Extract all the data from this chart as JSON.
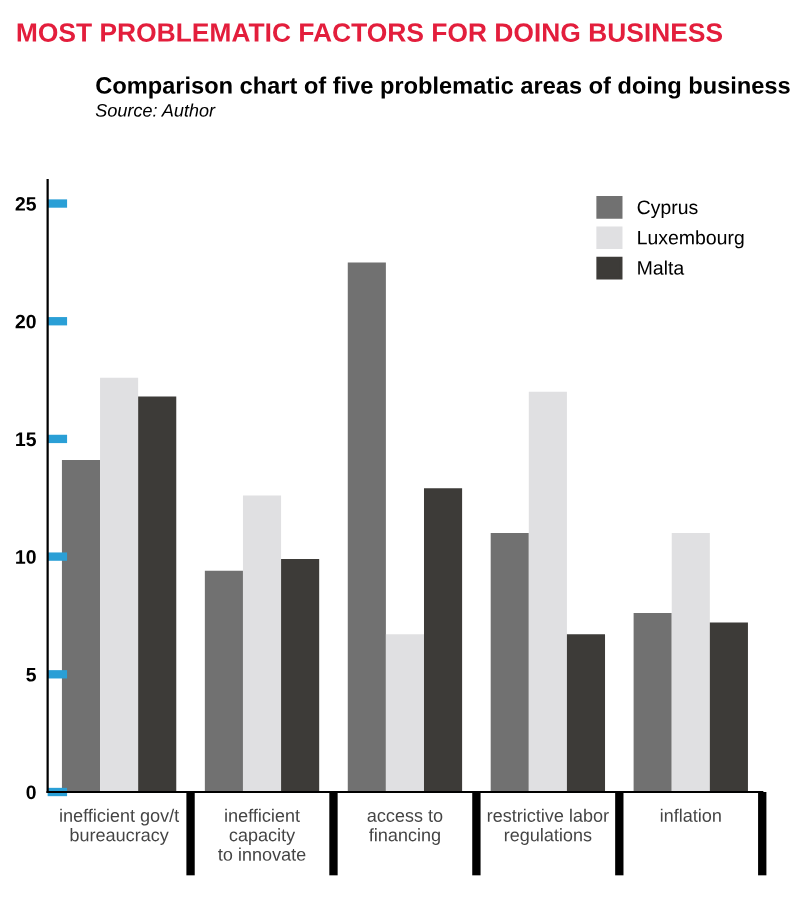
{
  "chart_data": {
    "type": "bar",
    "title": "MOST PROBLEMATIC FACTORS FOR DOING BUSINESS",
    "subtitle": "Comparison chart of five problematic areas of doing business",
    "annotations": [
      "Source: Author"
    ],
    "categories": [
      "inefficient gov/t\nbureaucracy",
      "inefficient\ncapacity\nto innovate",
      "access to\nfinancing",
      "restrictive labor\nregulations",
      "inflation"
    ],
    "series": [
      {
        "name": "Cyprus",
        "color": "#717171",
        "values": [
          14.1,
          9.4,
          22.5,
          11.0,
          7.6
        ]
      },
      {
        "name": "Luxembourg",
        "color": "#e0e0e2",
        "values": [
          17.6,
          12.6,
          6.7,
          17.0,
          11.0
        ]
      },
      {
        "name": "Malta",
        "color": "#3d3b38",
        "values": [
          16.8,
          9.9,
          12.9,
          6.7,
          7.2
        ]
      }
    ],
    "ylim": [
      0,
      26
    ],
    "yticks": [
      0,
      5,
      10,
      15,
      20,
      25
    ],
    "grid": false,
    "legend": "top right"
  }
}
